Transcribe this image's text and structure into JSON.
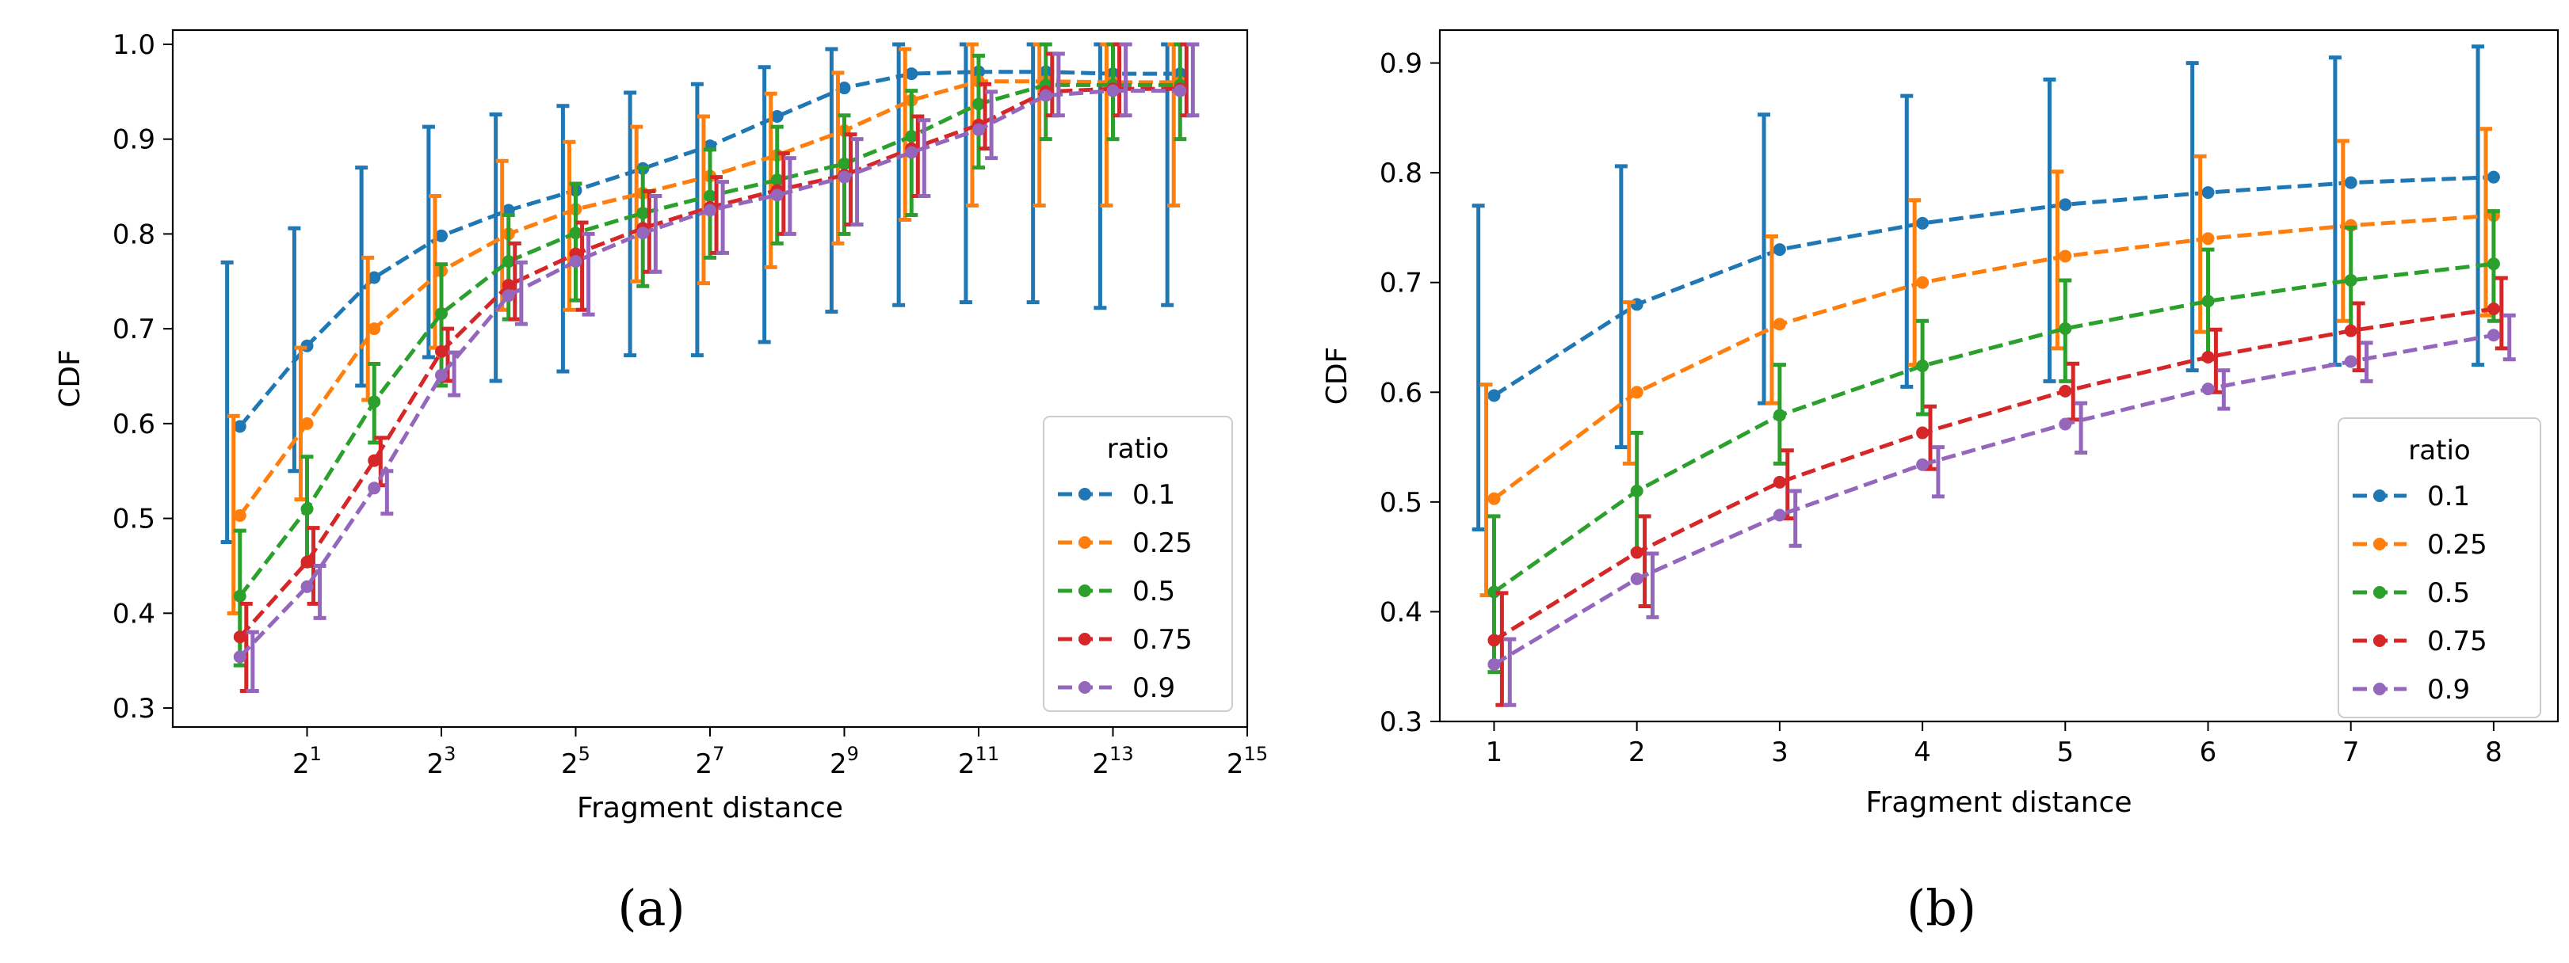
{
  "chart_data": [
    {
      "type": "line",
      "panel_label": "(a)",
      "xlabel": "Fragment distance",
      "ylabel": "CDF",
      "x_scale": "log2",
      "x": [
        1,
        2,
        4,
        8,
        16,
        32,
        64,
        128,
        256,
        512,
        1024,
        2048,
        4096,
        8192,
        16384
      ],
      "xlim": [
        0.5,
        32768
      ],
      "ylim": [
        0.28,
        1.015
      ],
      "x_tick_values": [
        2,
        8,
        32,
        128,
        512,
        2048,
        8192,
        32768
      ],
      "x_tick_base": "2",
      "x_tick_exponents": [
        "1",
        "3",
        "5",
        "7",
        "9",
        "11",
        "13",
        "15"
      ],
      "y_ticks": [
        "0.3",
        "0.4",
        "0.5",
        "0.6",
        "0.7",
        "0.8",
        "0.9",
        "1.0"
      ],
      "legend_title": "ratio",
      "legend_position": "lower right",
      "series": [
        {
          "name": "0.1",
          "color": "#1f77b4",
          "y": [
            0.597,
            0.682,
            0.754,
            0.798,
            0.825,
            0.846,
            0.869,
            0.893,
            0.924,
            0.954,
            0.969,
            0.971,
            0.971,
            0.969,
            0.969
          ],
          "low": [
            0.475,
            0.55,
            0.64,
            0.67,
            0.645,
            0.655,
            0.672,
            0.672,
            0.686,
            0.718,
            0.725,
            0.728,
            0.728,
            0.722,
            0.725
          ],
          "high": [
            0.77,
            0.806,
            0.87,
            0.913,
            0.926,
            0.935,
            0.949,
            0.958,
            0.976,
            0.995,
            1.0,
            1.0,
            1.0,
            1.0,
            1.0
          ]
        },
        {
          "name": "0.25",
          "color": "#ff7f0e",
          "y": [
            0.503,
            0.6,
            0.7,
            0.761,
            0.8,
            0.826,
            0.843,
            0.861,
            0.883,
            0.909,
            0.941,
            0.961,
            0.961,
            0.96,
            0.96
          ],
          "low": [
            0.4,
            0.52,
            0.625,
            0.68,
            0.72,
            0.72,
            0.75,
            0.748,
            0.765,
            0.79,
            0.815,
            0.83,
            0.83,
            0.83,
            0.83
          ],
          "high": [
            0.608,
            0.68,
            0.775,
            0.84,
            0.877,
            0.897,
            0.913,
            0.924,
            0.948,
            0.97,
            0.995,
            1.0,
            1.0,
            1.0,
            1.0
          ]
        },
        {
          "name": "0.5",
          "color": "#2ca02c",
          "y": [
            0.418,
            0.51,
            0.623,
            0.716,
            0.771,
            0.801,
            0.822,
            0.84,
            0.857,
            0.874,
            0.903,
            0.937,
            0.957,
            0.957,
            0.957
          ],
          "low": [
            0.345,
            0.45,
            0.58,
            0.64,
            0.71,
            0.73,
            0.745,
            0.775,
            0.79,
            0.8,
            0.82,
            0.87,
            0.9,
            0.9,
            0.9
          ],
          "high": [
            0.487,
            0.565,
            0.663,
            0.768,
            0.82,
            0.853,
            0.87,
            0.889,
            0.913,
            0.925,
            0.951,
            0.988,
            1.0,
            1.0,
            1.0
          ]
        },
        {
          "name": "0.75",
          "color": "#d62728",
          "y": [
            0.375,
            0.454,
            0.561,
            0.676,
            0.746,
            0.779,
            0.806,
            0.828,
            0.846,
            0.862,
            0.89,
            0.915,
            0.95,
            0.953,
            0.953
          ],
          "low": [
            0.318,
            0.41,
            0.535,
            0.645,
            0.71,
            0.72,
            0.76,
            0.78,
            0.8,
            0.81,
            0.84,
            0.89,
            0.925,
            0.925,
            0.925
          ],
          "high": [
            0.41,
            0.49,
            0.585,
            0.7,
            0.79,
            0.812,
            0.845,
            0.86,
            0.885,
            0.905,
            0.924,
            0.958,
            0.99,
            1.0,
            1.0
          ]
        },
        {
          "name": "0.9",
          "color": "#9467bd",
          "y": [
            0.354,
            0.428,
            0.532,
            0.651,
            0.735,
            0.771,
            0.801,
            0.825,
            0.841,
            0.86,
            0.886,
            0.91,
            0.946,
            0.951,
            0.951
          ],
          "low": [
            0.318,
            0.395,
            0.505,
            0.63,
            0.705,
            0.715,
            0.76,
            0.78,
            0.8,
            0.81,
            0.84,
            0.88,
            0.925,
            0.925,
            0.925
          ],
          "high": [
            0.38,
            0.45,
            0.55,
            0.675,
            0.77,
            0.8,
            0.84,
            0.855,
            0.88,
            0.9,
            0.92,
            0.95,
            0.99,
            1.0,
            1.0
          ]
        }
      ]
    },
    {
      "type": "line",
      "panel_label": "(b)",
      "xlabel": "Fragment distance",
      "ylabel": "CDF",
      "x_scale": "linear",
      "x": [
        1,
        2,
        3,
        4,
        5,
        6,
        7,
        8
      ],
      "xlim": [
        0.62,
        8.45
      ],
      "ylim": [
        0.3,
        0.93
      ],
      "x_ticks": [
        "1",
        "2",
        "3",
        "4",
        "5",
        "6",
        "7",
        "8"
      ],
      "y_ticks": [
        "0.3",
        "0.4",
        "0.5",
        "0.6",
        "0.7",
        "0.8",
        "0.9"
      ],
      "legend_title": "ratio",
      "legend_position": "lower right",
      "series": [
        {
          "name": "0.1",
          "color": "#1f77b4",
          "y": [
            0.597,
            0.68,
            0.73,
            0.754,
            0.771,
            0.782,
            0.791,
            0.796
          ],
          "low": [
            0.475,
            0.55,
            0.59,
            0.605,
            0.61,
            0.62,
            0.625,
            0.625
          ],
          "high": [
            0.77,
            0.806,
            0.853,
            0.87,
            0.885,
            0.9,
            0.905,
            0.915
          ]
        },
        {
          "name": "0.25",
          "color": "#ff7f0e",
          "y": [
            0.503,
            0.6,
            0.662,
            0.7,
            0.724,
            0.74,
            0.752,
            0.761
          ],
          "low": [
            0.415,
            0.535,
            0.59,
            0.625,
            0.64,
            0.655,
            0.665,
            0.67
          ],
          "high": [
            0.607,
            0.682,
            0.742,
            0.775,
            0.801,
            0.815,
            0.829,
            0.84
          ]
        },
        {
          "name": "0.5",
          "color": "#2ca02c",
          "y": [
            0.418,
            0.51,
            0.579,
            0.624,
            0.658,
            0.683,
            0.702,
            0.717
          ],
          "low": [
            0.345,
            0.455,
            0.535,
            0.58,
            0.61,
            0.63,
            0.655,
            0.665
          ],
          "high": [
            0.487,
            0.563,
            0.625,
            0.665,
            0.702,
            0.73,
            0.75,
            0.765
          ]
        },
        {
          "name": "0.75",
          "color": "#d62728",
          "y": [
            0.374,
            0.454,
            0.518,
            0.563,
            0.601,
            0.632,
            0.656,
            0.676
          ],
          "low": [
            0.315,
            0.405,
            0.485,
            0.53,
            0.575,
            0.6,
            0.62,
            0.64
          ],
          "high": [
            0.417,
            0.487,
            0.547,
            0.587,
            0.626,
            0.657,
            0.681,
            0.704
          ]
        },
        {
          "name": "0.9",
          "color": "#9467bd",
          "y": [
            0.352,
            0.43,
            0.488,
            0.534,
            0.571,
            0.603,
            0.628,
            0.652
          ],
          "low": [
            0.315,
            0.395,
            0.46,
            0.505,
            0.545,
            0.585,
            0.61,
            0.63
          ],
          "high": [
            0.375,
            0.453,
            0.51,
            0.55,
            0.59,
            0.62,
            0.645,
            0.67
          ]
        }
      ]
    }
  ]
}
